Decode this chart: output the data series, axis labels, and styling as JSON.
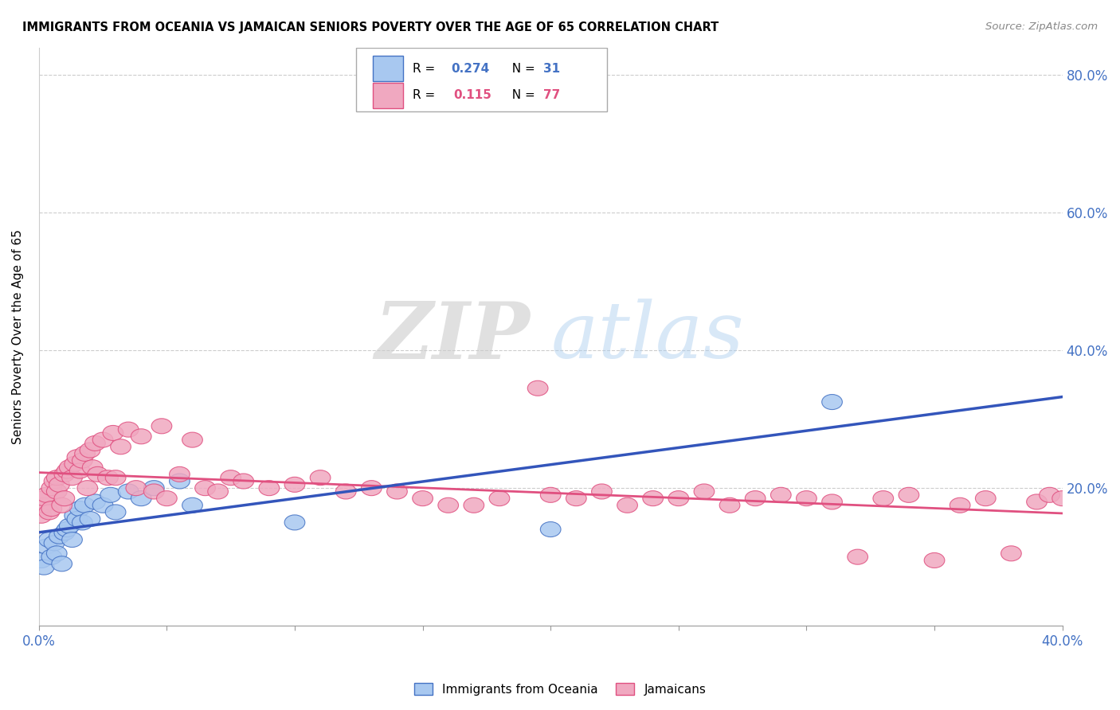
{
  "title": "IMMIGRANTS FROM OCEANIA VS JAMAICAN SENIORS POVERTY OVER THE AGE OF 65 CORRELATION CHART",
  "source": "Source: ZipAtlas.com",
  "ylabel": "Seniors Poverty Over the Age of 65",
  "color_oceania_fill": "#a8c8f0",
  "color_oceania_edge": "#4472c4",
  "color_jamaica_fill": "#f0a8c0",
  "color_jamaica_edge": "#e05080",
  "color_line_oceania": "#3355bb",
  "color_line_jamaica": "#e05080",
  "watermark_zip": "ZIP",
  "watermark_atlas": "atlas",
  "xlim": [
    0.0,
    0.4
  ],
  "ylim": [
    0.0,
    0.84
  ],
  "ytick_positions": [
    0.0,
    0.2,
    0.4,
    0.6,
    0.8
  ],
  "ytick_labels": [
    "",
    "20.0%",
    "40.0%",
    "60.0%",
    "80.0%"
  ],
  "xtick_positions": [
    0.0,
    0.05,
    0.1,
    0.15,
    0.2,
    0.25,
    0.3,
    0.35,
    0.4
  ],
  "xtick_labels": [
    "0.0%",
    "",
    "",
    "",
    "",
    "",
    "",
    "",
    "40.0%"
  ],
  "oceania_x": [
    0.001,
    0.002,
    0.003,
    0.004,
    0.005,
    0.006,
    0.007,
    0.008,
    0.009,
    0.01,
    0.011,
    0.012,
    0.013,
    0.014,
    0.015,
    0.016,
    0.017,
    0.018,
    0.02,
    0.022,
    0.025,
    0.028,
    0.03,
    0.035,
    0.04,
    0.045,
    0.055,
    0.06,
    0.1,
    0.2,
    0.31
  ],
  "oceania_y": [
    0.095,
    0.085,
    0.115,
    0.125,
    0.1,
    0.12,
    0.105,
    0.13,
    0.09,
    0.135,
    0.14,
    0.145,
    0.125,
    0.16,
    0.155,
    0.17,
    0.15,
    0.175,
    0.155,
    0.18,
    0.175,
    0.19,
    0.165,
    0.195,
    0.185,
    0.2,
    0.21,
    0.175,
    0.15,
    0.14,
    0.325
  ],
  "jamaica_x": [
    0.001,
    0.002,
    0.002,
    0.003,
    0.004,
    0.005,
    0.005,
    0.006,
    0.007,
    0.007,
    0.008,
    0.009,
    0.01,
    0.01,
    0.011,
    0.012,
    0.013,
    0.014,
    0.015,
    0.016,
    0.017,
    0.018,
    0.019,
    0.02,
    0.021,
    0.022,
    0.023,
    0.025,
    0.027,
    0.029,
    0.03,
    0.032,
    0.035,
    0.038,
    0.04,
    0.045,
    0.048,
    0.05,
    0.055,
    0.06,
    0.065,
    0.07,
    0.075,
    0.08,
    0.09,
    0.1,
    0.11,
    0.12,
    0.13,
    0.14,
    0.15,
    0.16,
    0.17,
    0.18,
    0.195,
    0.2,
    0.21,
    0.22,
    0.23,
    0.24,
    0.25,
    0.26,
    0.27,
    0.28,
    0.29,
    0.3,
    0.31,
    0.32,
    0.33,
    0.34,
    0.35,
    0.36,
    0.37,
    0.38,
    0.39,
    0.395,
    0.4
  ],
  "jamaica_y": [
    0.16,
    0.175,
    0.185,
    0.19,
    0.165,
    0.2,
    0.17,
    0.21,
    0.195,
    0.215,
    0.205,
    0.175,
    0.22,
    0.185,
    0.225,
    0.23,
    0.215,
    0.235,
    0.245,
    0.225,
    0.24,
    0.25,
    0.2,
    0.255,
    0.23,
    0.265,
    0.22,
    0.27,
    0.215,
    0.28,
    0.215,
    0.26,
    0.285,
    0.2,
    0.275,
    0.195,
    0.29,
    0.185,
    0.22,
    0.27,
    0.2,
    0.195,
    0.215,
    0.21,
    0.2,
    0.205,
    0.215,
    0.195,
    0.2,
    0.195,
    0.185,
    0.175,
    0.175,
    0.185,
    0.345,
    0.19,
    0.185,
    0.195,
    0.175,
    0.185,
    0.185,
    0.195,
    0.175,
    0.185,
    0.19,
    0.185,
    0.18,
    0.1,
    0.185,
    0.19,
    0.095,
    0.175,
    0.185,
    0.105,
    0.18,
    0.19,
    0.185
  ]
}
